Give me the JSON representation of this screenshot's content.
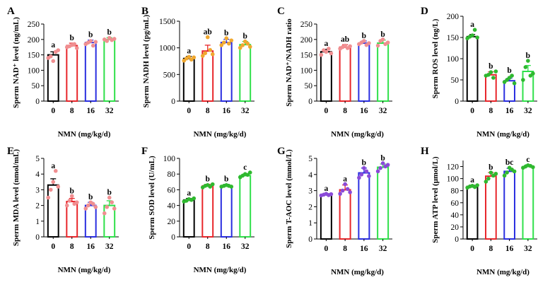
{
  "figure": {
    "x_title": "NMN (mg/kg/d)"
  },
  "colors": {
    "black": "#000000",
    "red": "#e8262b",
    "blue": "#2a2ee0",
    "green": "#2fe04a",
    "dots_pink": "#f08f91",
    "dots_orange": "#f0a830",
    "dots_green": "#2fb82f",
    "dots_purple": "#8a4ad8"
  },
  "chart_data": [
    {
      "type": "bar",
      "panel": "A",
      "ylabel": "Sperm NAD⁺ level (ng/mL)",
      "xlabel": "NMN (mg/kg/d)",
      "categories": [
        "0",
        "8",
        "16",
        "32"
      ],
      "ylim": [
        0,
        250
      ],
      "yticks": [
        0,
        50,
        100,
        150,
        200,
        250
      ],
      "values": [
        150,
        180,
        190,
        200
      ],
      "errors": [
        10,
        8,
        8,
        6
      ],
      "letters": [
        "a",
        "b",
        "b",
        "b"
      ],
      "dot_color": "#f08f91",
      "points": [
        [
          140,
          145,
          130,
          160,
          165
        ],
        [
          175,
          178,
          182,
          185,
          172
        ],
        [
          185,
          190,
          195,
          180,
          192
        ],
        [
          200,
          195,
          205,
          198,
          202
        ]
      ]
    },
    {
      "type": "bar",
      "panel": "B",
      "ylabel": "Sperm NADH level (pg/mL)",
      "xlabel": "NMN (mg/kg/d)",
      "categories": [
        "0",
        "8",
        "16",
        "32"
      ],
      "ylim": [
        0,
        1500
      ],
      "yticks": [
        0,
        500,
        1000,
        1500
      ],
      "values": [
        800,
        940,
        1100,
        1060
      ],
      "errors": [
        40,
        110,
        60,
        60
      ],
      "letters": [
        "a",
        "ab",
        "b",
        "b"
      ],
      "dot_color": "#f0a830",
      "points": [
        [
          760,
          800,
          830,
          780,
          820
        ],
        [
          850,
          900,
          1200,
          960,
          880
        ],
        [
          1050,
          1100,
          1180,
          1080,
          1140
        ],
        [
          1000,
          1050,
          1120,
          1080,
          1020
        ]
      ]
    },
    {
      "type": "bar",
      "panel": "C",
      "ylabel": "Sperm NAD⁺/NADH ratio",
      "xlabel": "NMN (mg/kg/d)",
      "categories": [
        "0",
        "8",
        "16",
        "32"
      ],
      "ylim": [
        0,
        250
      ],
      "yticks": [
        0,
        50,
        100,
        150,
        200,
        250
      ],
      "values": [
        160,
        175,
        188,
        188
      ],
      "errors": [
        8,
        8,
        7,
        10
      ],
      "letters": [
        "a",
        "ab",
        "b",
        "b"
      ],
      "dot_color": "#f08f91",
      "points": [
        [
          150,
          165,
          160,
          170,
          155
        ],
        [
          170,
          175,
          180,
          172,
          178
        ],
        [
          185,
          190,
          195,
          182,
          188
        ],
        [
          180,
          195,
          200,
          185,
          190
        ]
      ]
    },
    {
      "type": "bar",
      "panel": "D",
      "ylabel": "Sperm ROS level (ng/L)",
      "xlabel": "NMN (mg/kg/d)",
      "categories": [
        "0",
        "8",
        "16",
        "32"
      ],
      "ylim": [
        0,
        200
      ],
      "yticks": [
        0,
        50,
        100,
        150,
        200
      ],
      "values": [
        152,
        62,
        48,
        70
      ],
      "errors": [
        5,
        7,
        6,
        14
      ],
      "letters": [
        "a",
        "b",
        "b",
        "b"
      ],
      "dot_color": "#2fb82f",
      "points": [
        [
          148,
          152,
          155,
          168,
          150
        ],
        [
          60,
          62,
          68,
          55,
          70
        ],
        [
          45,
          50,
          55,
          60,
          42
        ],
        [
          50,
          80,
          95,
          60,
          65
        ]
      ]
    },
    {
      "type": "bar",
      "panel": "E",
      "ylabel": "Sperm MDA level (nmol/mL)",
      "xlabel": "NMN (mg/kg/d)",
      "categories": [
        "0",
        "8",
        "16",
        "32"
      ],
      "ylim": [
        0,
        5
      ],
      "yticks": [
        0,
        1,
        2,
        3,
        4,
        5
      ],
      "values": [
        3.3,
        2.25,
        2.0,
        2.0
      ],
      "errors": [
        0.4,
        0.2,
        0.2,
        0.3
      ],
      "letters": [
        "a",
        "b",
        "b",
        "b"
      ],
      "dot_color": "#f08f91",
      "points": [
        [
          2.5,
          3.0,
          3.5,
          4.2,
          3.2
        ],
        [
          2.0,
          2.3,
          2.6,
          2.1,
          2.2
        ],
        [
          1.8,
          2.0,
          2.2,
          2.1,
          1.9
        ],
        [
          1.5,
          1.9,
          2.5,
          2.2,
          1.8
        ]
      ]
    },
    {
      "type": "bar",
      "panel": "F",
      "ylabel": "Sperm SOD level (U/mL)",
      "xlabel": "NMN (mg/kg/d)",
      "categories": [
        "0",
        "8",
        "16",
        "32"
      ],
      "ylim": [
        0,
        100
      ],
      "yticks": [
        0,
        20,
        40,
        60,
        80,
        100
      ],
      "values": [
        47,
        65,
        65,
        78
      ],
      "errors": [
        2,
        2,
        2,
        2
      ],
      "letters": [
        "a",
        "b",
        "b",
        "c"
      ],
      "dot_color": "#2fb82f",
      "points": [
        [
          45,
          46,
          48,
          47,
          49
        ],
        [
          63,
          65,
          66,
          64,
          67
        ],
        [
          64,
          65,
          66,
          65,
          64
        ],
        [
          76,
          78,
          80,
          79,
          82
        ]
      ]
    },
    {
      "type": "bar",
      "panel": "G",
      "ylabel": "Sperm T-AOC level (mmol/L)",
      "xlabel": "NMN (mg/kg/d)",
      "categories": [
        "0",
        "8",
        "16",
        "32"
      ],
      "ylim": [
        0,
        5
      ],
      "yticks": [
        0,
        1,
        2,
        3,
        4,
        5
      ],
      "values": [
        2.75,
        3.05,
        4.1,
        4.45
      ],
      "errors": [
        0.06,
        0.3,
        0.3,
        0.2
      ],
      "letters": [
        "a",
        "a",
        "b",
        "b"
      ],
      "dot_color": "#8a4ad8",
      "points": [
        [
          2.7,
          2.75,
          2.8,
          2.72,
          2.78
        ],
        [
          2.8,
          3.0,
          3.4,
          3.1,
          2.9
        ],
        [
          3.8,
          4.0,
          4.4,
          4.2,
          3.9
        ],
        [
          4.2,
          4.4,
          4.7,
          4.5,
          4.6
        ]
      ]
    },
    {
      "type": "bar",
      "panel": "H",
      "ylabel": "Sperm ATP level (μmol/L)",
      "xlabel": "NMN (mg/kg/d)",
      "categories": [
        "0",
        "8",
        "16",
        "32"
      ],
      "ylim": [
        0,
        130
      ],
      "yticks": [
        0,
        20,
        40,
        60,
        80,
        100,
        120
      ],
      "values": [
        87,
        104,
        112,
        120
      ],
      "errors": [
        2,
        6,
        5,
        3
      ],
      "letters": [
        "a",
        "b",
        "bc",
        "c"
      ],
      "dot_color": "#2fb82f",
      "points": [
        [
          85,
          87,
          88,
          86,
          89
        ],
        [
          95,
          100,
          110,
          105,
          108
        ],
        [
          105,
          110,
          118,
          115,
          112
        ],
        [
          118,
          120,
          122,
          121,
          119
        ]
      ]
    }
  ]
}
